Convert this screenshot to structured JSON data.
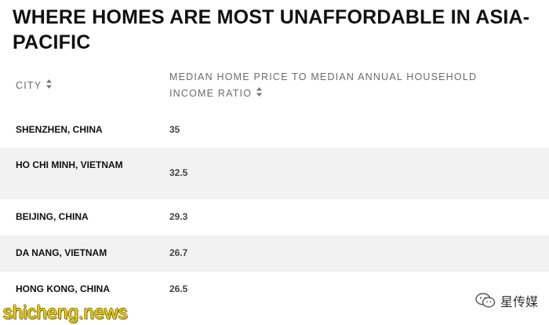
{
  "title": "WHERE HOMES ARE MOST UNAFFORDABLE IN ASIA-PACIFIC",
  "table": {
    "columns": [
      {
        "label": "CITY",
        "icon": "sort-icon"
      },
      {
        "label": "MEDIAN HOME PRICE TO MEDIAN ANNUAL HOUSEHOLD INCOME RATIO",
        "icon": "sort-icon"
      }
    ],
    "rows": [
      {
        "city": "SHENZHEN, CHINA",
        "value": "35"
      },
      {
        "city": "HO CHI MINH, VIETNAM",
        "value": "32.5"
      },
      {
        "city": "BEIJING, CHINA",
        "value": "29.3"
      },
      {
        "city": "DA NANG, VIETNAM",
        "value": "26.7"
      },
      {
        "city": "HONG KONG, CHINA",
        "value": "26.5"
      }
    ]
  },
  "watermark": {
    "left": "shicheng.news",
    "right": "星传媒",
    "right_icon": "wechat-icon"
  },
  "colors": {
    "alt_row": "#f2f2f2",
    "header_text": "#6b6b6b",
    "watermark_yellow": "#f1d11a"
  }
}
